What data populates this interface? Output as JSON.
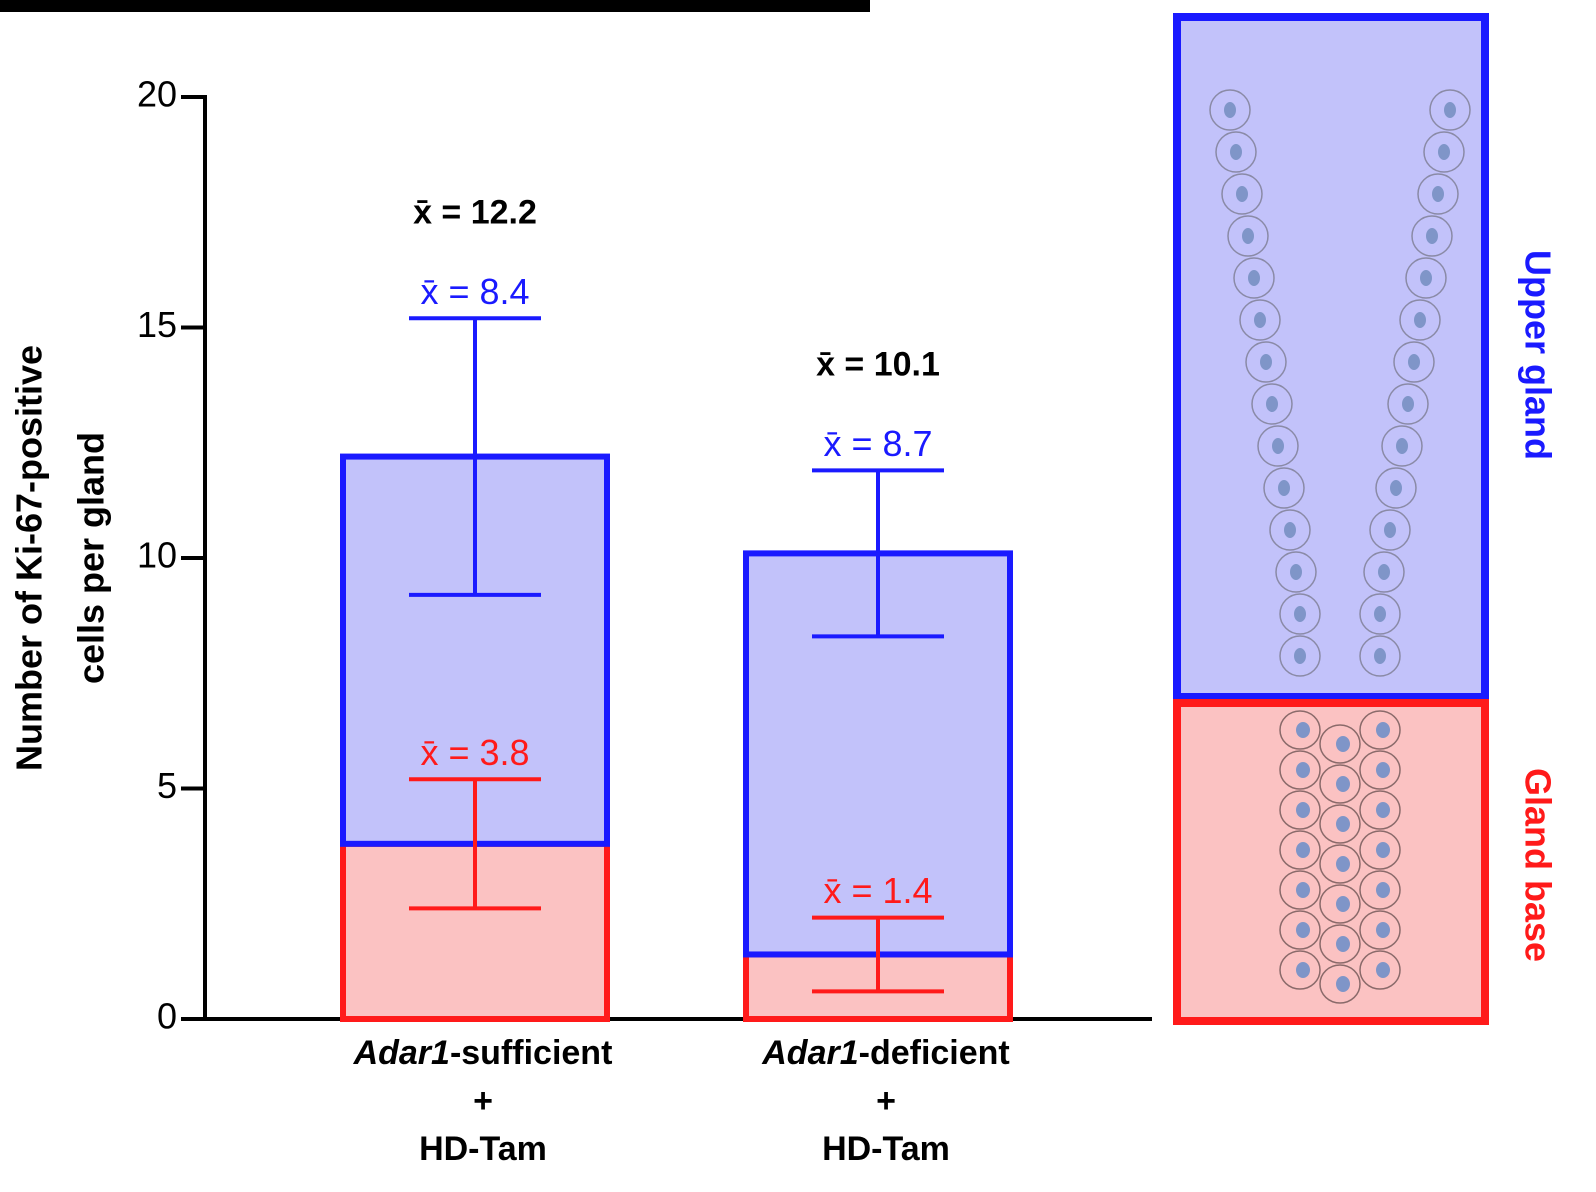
{
  "chart_data": {
    "type": "stacked-bar",
    "ylabel": [
      "Number of Ki-67-positive",
      "cells per gland"
    ],
    "categories": [
      [
        "Adar1-sufficient",
        "+",
        "HD-Tam"
      ],
      [
        "Adar1-deficient",
        "+",
        "HD-Tam"
      ]
    ],
    "series": [
      {
        "name": "Gland base",
        "color": "#ff1a1a",
        "fill": "#fbc2c2",
        "values": [
          3.8,
          1.4
        ],
        "errors": [
          1.4,
          0.8
        ],
        "value_labels": [
          "x̄ = 3.8",
          "x̄ = 1.4"
        ]
      },
      {
        "name": "Upper gland",
        "color": "#1a1aff",
        "fill": "#c2c2fa",
        "values": [
          8.4,
          8.7
        ],
        "errors": [
          3.0,
          1.8
        ],
        "value_labels": [
          "x̄ = 8.4",
          "x̄ = 8.7"
        ]
      }
    ],
    "total_labels": [
      "x̄ = 12.2",
      "x̄ = 10.1"
    ],
    "ylim": [
      0,
      20
    ],
    "yticks": [
      0,
      5,
      10,
      15,
      20
    ]
  }
}
